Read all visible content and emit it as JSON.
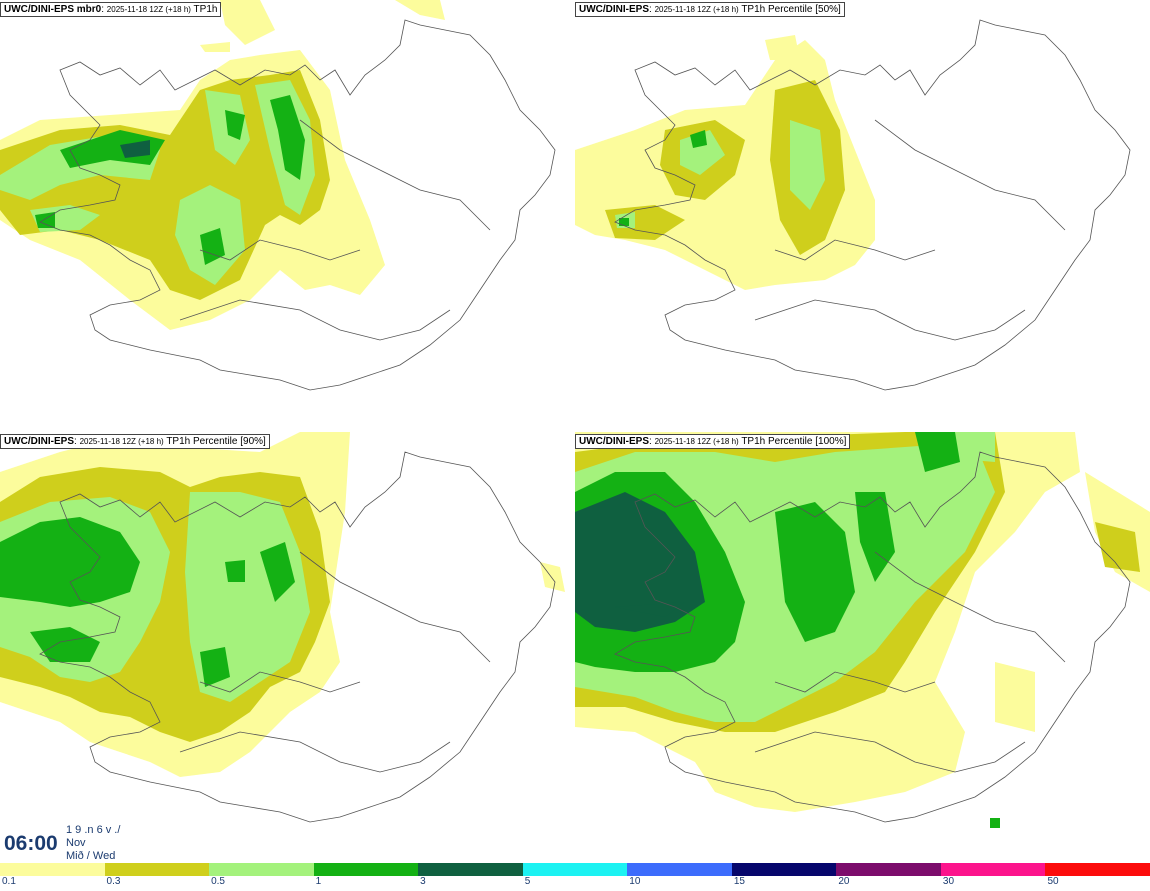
{
  "panels": [
    {
      "model": "UWC/DINI-EPS mbr0",
      "run": "2025-11-18 12Z (+18 h)",
      "product": "TP1h"
    },
    {
      "model": "UWC/DINI-EPS",
      "run": "2025-11-18 12Z (+18 h)",
      "product": "TP1h Percentile [50%]"
    },
    {
      "model": "UWC/DINI-EPS",
      "run": "2025-11-18 12Z (+18 h)",
      "product": "TP1h Percentile [90%]"
    },
    {
      "model": "UWC/DINI-EPS",
      "run": "2025-11-18 12Z (+18 h)",
      "product": "TP1h Percentile [100%]"
    }
  ],
  "valid_time": {
    "time": "06:00",
    "day": "1 9 .n 6 v ./",
    "month": "Nov",
    "weekday": "Mið / Wed"
  },
  "colorbar": {
    "ticks": [
      "0.1",
      "0.3",
      "0.5",
      "1",
      "3",
      "5",
      "10",
      "15",
      "20",
      "30",
      "50"
    ],
    "colors": [
      "#fcfc9c",
      "#cfcf1c",
      "#a4f27c",
      "#14b114",
      "#0f6040",
      "#1cf2f2",
      "#3c6cfc",
      "#06066c",
      "#7c0c6c",
      "#fc148c",
      "#fc0c0c"
    ]
  },
  "colors": {
    "light_yellow": "#fcfc9c",
    "olive": "#cfcf1c",
    "light_green": "#a4f27c",
    "green": "#14b114",
    "dark_green": "#0f6040",
    "coast": "#555555"
  }
}
